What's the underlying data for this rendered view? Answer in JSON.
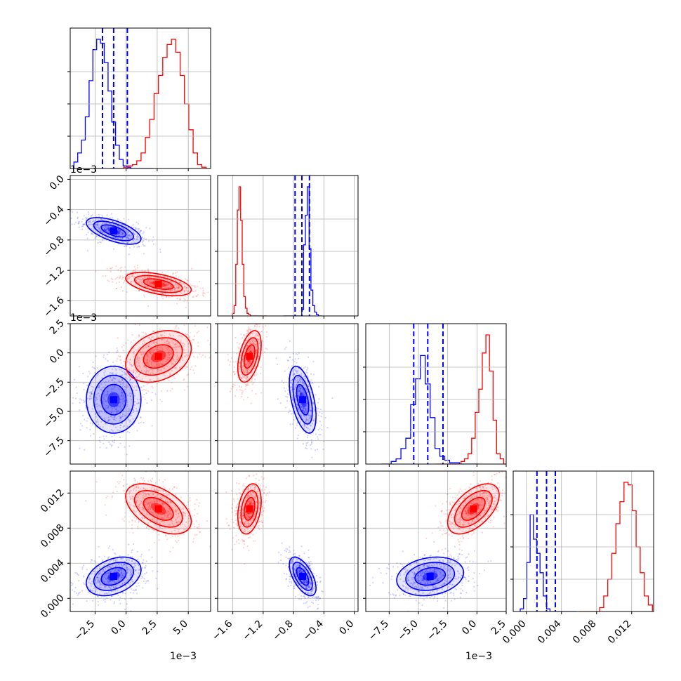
{
  "colors": {
    "series_a": "#0000ff",
    "series_b": "#ff0000",
    "grid": "#b0b0b0",
    "frame": "#000000"
  },
  "chart_data": {
    "type": "corner",
    "grid": true,
    "parameters": [
      {
        "range": [
          -4.5,
          6.8
        ],
        "ticks": [
          -2.5,
          0.0,
          2.5,
          5.0
        ],
        "tick_labels": [
          "−2.5",
          "0.0",
          "2.5",
          "5.0"
        ],
        "offset_label": "1e−3"
      },
      {
        "range": [
          -1.8,
          0.05
        ],
        "ticks": [
          -1.6,
          -1.2,
          -0.8,
          -0.4,
          0.0
        ],
        "tick_labels": [
          "−1.6",
          "−1.2",
          "−0.8",
          "−0.4",
          "0.0"
        ],
        "offset_label": "1e−3"
      },
      {
        "range": [
          -9.5,
          2.5
        ],
        "ticks": [
          -7.5,
          -5.0,
          -2.5,
          0.0,
          2.5
        ],
        "tick_labels": [
          "−7.5",
          "−5.0",
          "−2.5",
          "0.0",
          "2.5"
        ],
        "offset_label": "1e−3"
      },
      {
        "range": [
          -0.0015,
          0.0145
        ],
        "ticks": [
          0.0,
          0.004,
          0.008,
          0.012
        ],
        "tick_labels": [
          "0.000",
          "0.004",
          "0.008",
          "0.012"
        ],
        "offset_label": ""
      }
    ],
    "series": [
      {
        "color": "blue",
        "means": [
          -1.0,
          -0.68,
          -4.0,
          0.0025
        ],
        "stds": [
          1.0,
          0.08,
          1.3,
          0.001
        ],
        "quantiles": [
          [
            -1.9,
            -1.0,
            0.1
          ],
          [
            -0.78,
            -0.69,
            -0.59
          ],
          [
            -5.4,
            -4.2,
            -2.9
          ],
          [
            0.0012,
            0.0023,
            0.0033
          ]
        ],
        "correlations": {
          "0-1": -0.6,
          "0-2": 0.0,
          "0-3": 0.35,
          "1-2": -0.5,
          "1-3": -0.6,
          "2-3": 0.2
        }
      },
      {
        "color": "red",
        "means": [
          2.6,
          -1.38,
          -0.3,
          0.0102
        ],
        "stds": [
          1.2,
          0.07,
          1.0,
          0.0013
        ],
        "quantiles": [],
        "correlations": {
          "0-1": -0.5,
          "0-2": 0.3,
          "0-3": -0.5,
          "1-2": 0.45,
          "1-3": 0.3,
          "2-3": 0.55
        }
      }
    ],
    "histograms": [
      {
        "blue": [
          0.05,
          0.12,
          0.22,
          0.4,
          0.68,
          0.92,
          1.0,
          0.97,
          0.82,
          0.6,
          0.36,
          0.18,
          0.07,
          0.02,
          0.01,
          0,
          0,
          0,
          0,
          0,
          0
        ],
        "red": [
          0,
          0,
          0,
          0.01,
          0.02,
          0.03,
          0.06,
          0.12,
          0.24,
          0.38,
          0.58,
          0.72,
          0.86,
          0.96,
          1.0,
          0.9,
          0.72,
          0.5,
          0.3,
          0.12,
          0.03,
          0.01
        ]
      },
      {
        "blue": [
          0,
          0,
          0,
          0,
          0,
          0,
          0,
          0,
          0,
          0,
          0.05,
          0.55,
          0.78,
          1.0,
          0.52,
          0.2,
          0.08,
          0.03,
          0.01,
          0,
          0
        ],
        "red": [
          0.02,
          0.08,
          0.4,
          0.82,
          1.0,
          0.74,
          0.4,
          0.15,
          0.06,
          0.02,
          0.01,
          0,
          0,
          0,
          0,
          0,
          0,
          0,
          0,
          0,
          0
        ]
      },
      {
        "blue": [
          0,
          0,
          0.02,
          0.04,
          0.12,
          0.2,
          0.46,
          0.66,
          0.84,
          0.62,
          0.36,
          0.12,
          0.06,
          0.03,
          0.01,
          0.01,
          0,
          0,
          0,
          0
        ],
        "red": [
          0,
          0,
          0,
          0,
          0,
          0,
          0,
          0.02,
          0.04,
          0.08,
          0.2,
          0.4,
          0.58,
          0.86,
          1.0,
          0.72,
          0.34,
          0.08,
          0.04,
          0,
          0
        ]
      },
      {
        "blue": [
          0.02,
          0.1,
          0.38,
          0.75,
          0.56,
          0.45,
          0.3,
          0.12,
          0.02,
          0,
          0,
          0,
          0,
          0,
          0,
          0,
          0
        ],
        "red": [
          0,
          0,
          0,
          0,
          0,
          0.03,
          0.12,
          0.25,
          0.45,
          0.68,
          0.85,
          1.0,
          0.98,
          0.78,
          0.5,
          0.3,
          0.12,
          0.05
        ]
      }
    ]
  }
}
